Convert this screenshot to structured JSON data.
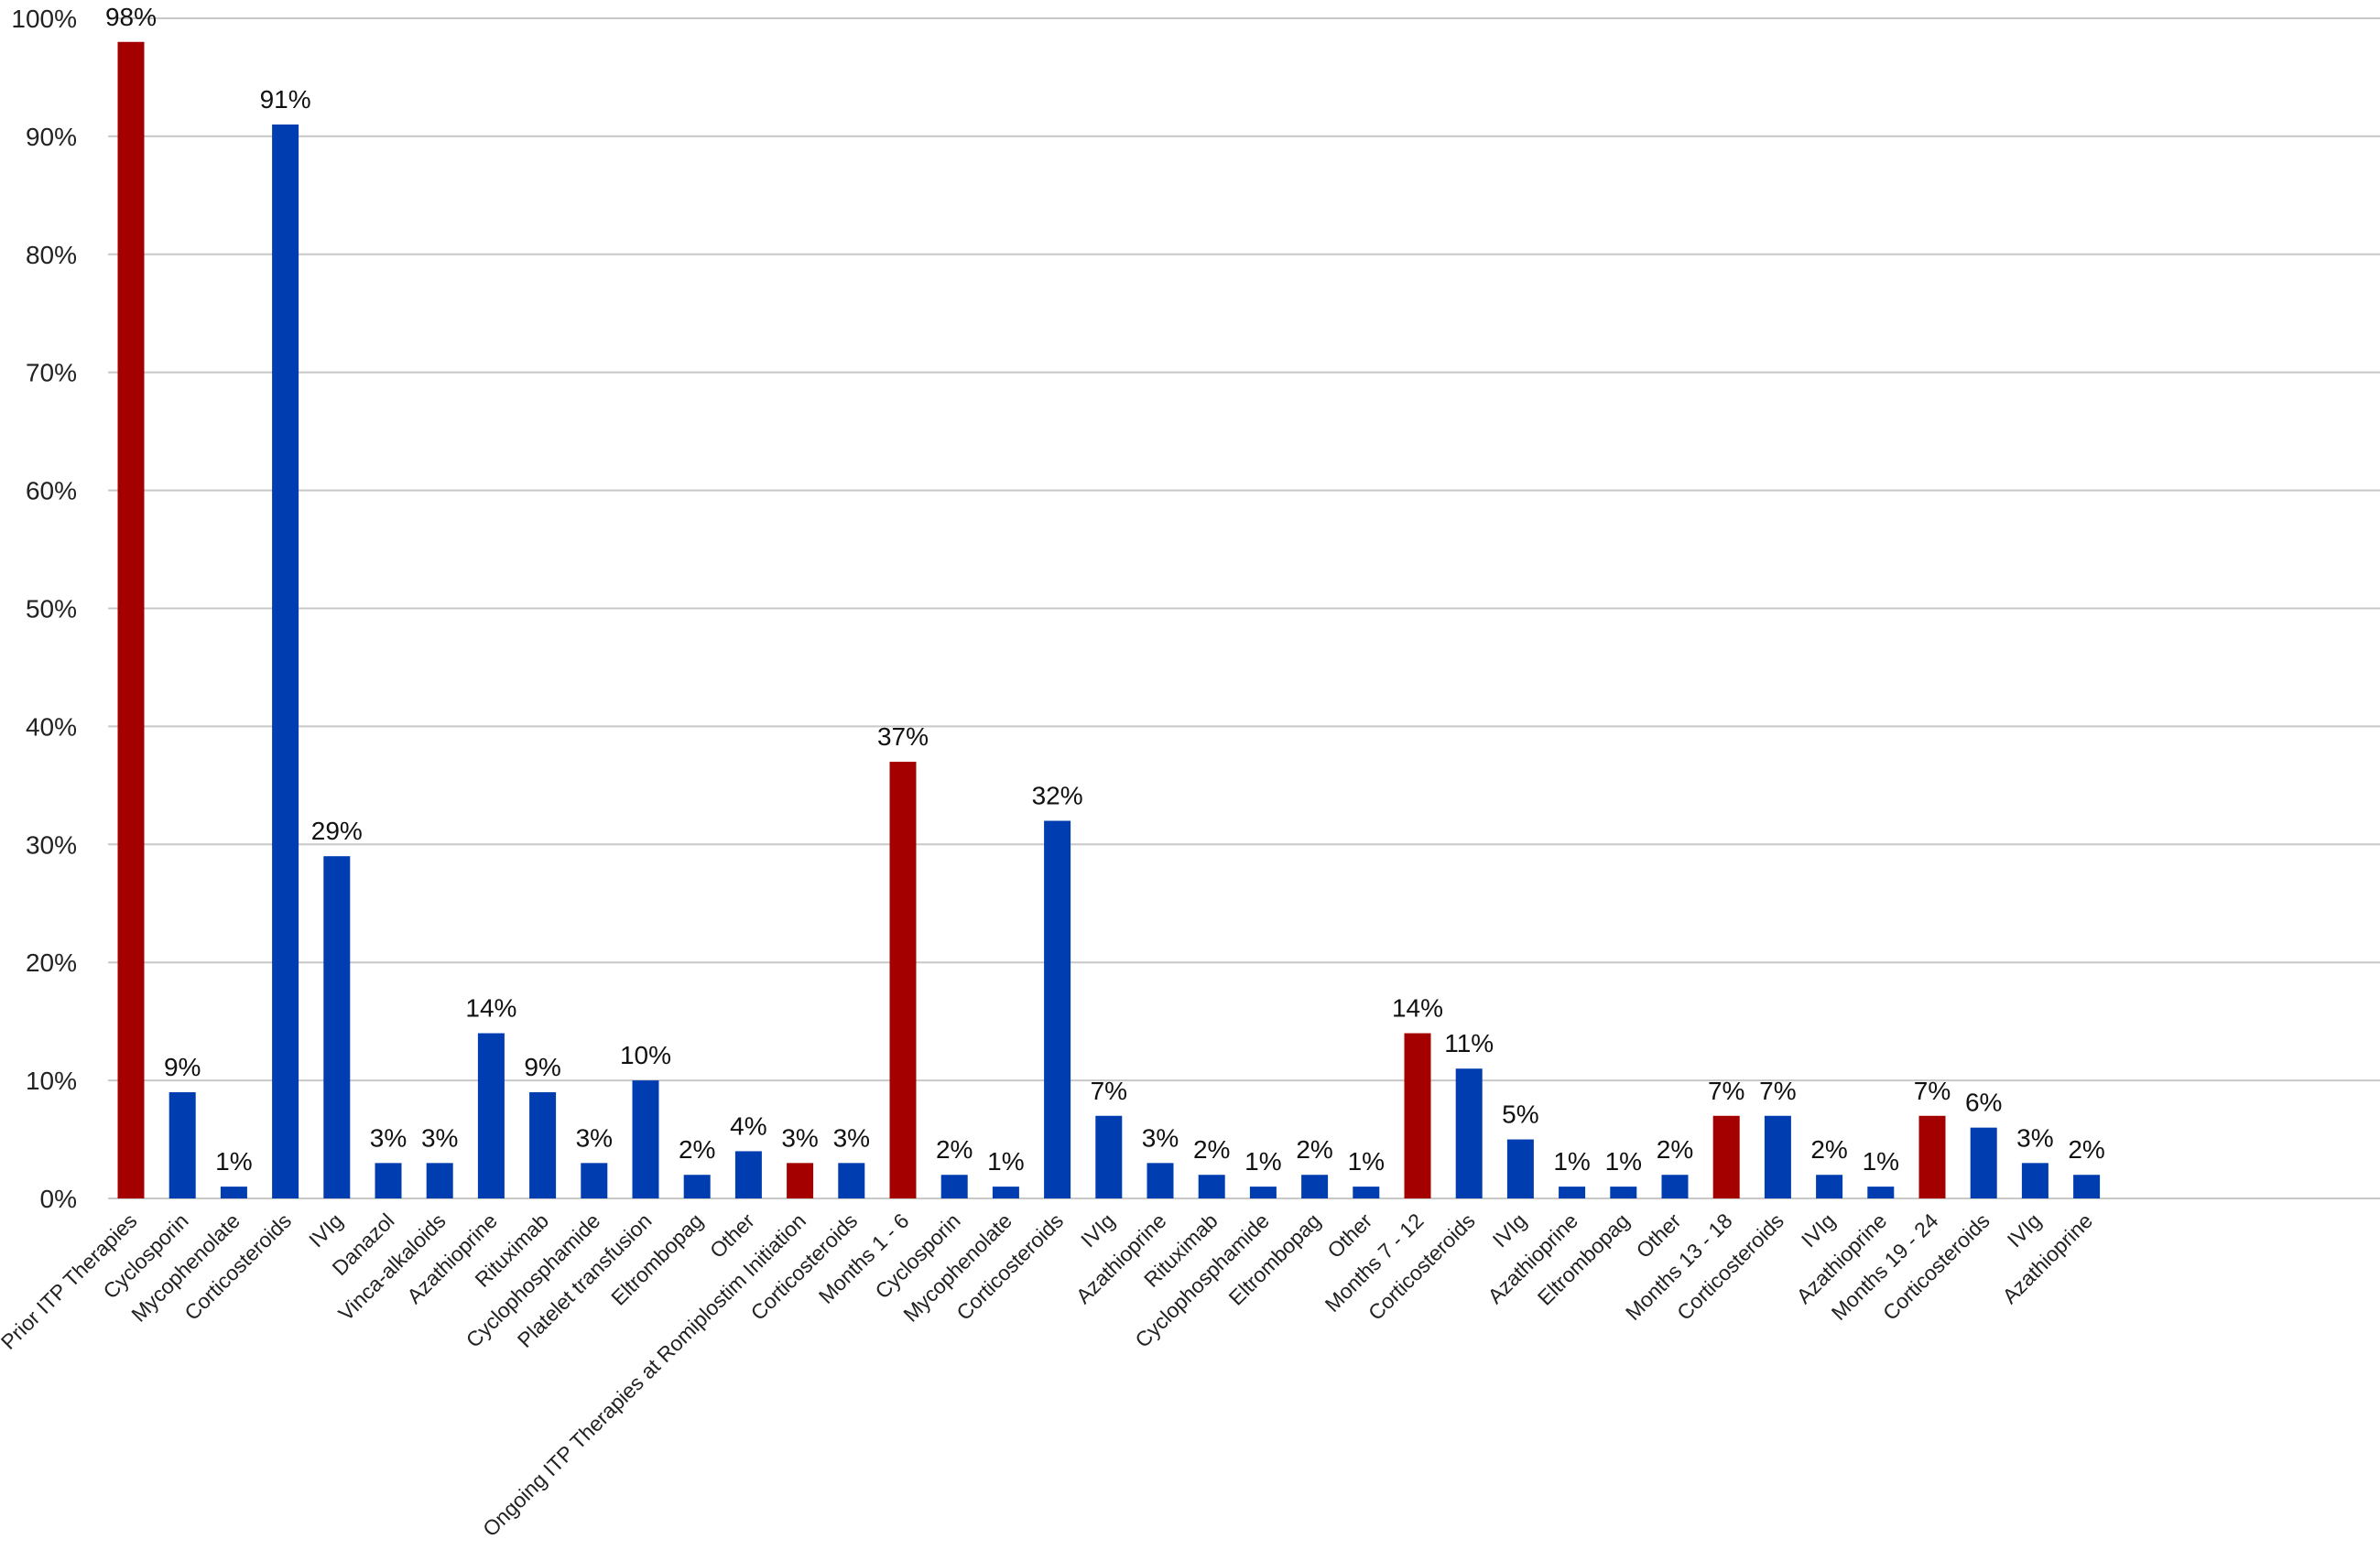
{
  "chart_data": {
    "type": "bar",
    "title": "",
    "xlabel": "",
    "ylabel": "",
    "ylim": [
      0,
      100
    ],
    "y_ticks": [
      "0%",
      "10%",
      "20%",
      "30%",
      "40%",
      "50%",
      "60%",
      "70%",
      "80%",
      "90%",
      "100%"
    ],
    "grid": true,
    "legend": "none",
    "colors": {
      "header": "#A50000",
      "item": "#003DB0",
      "grid": "#C8C8C8"
    },
    "categories": [
      "Prior ITP Therapies",
      "Cyclosporin",
      "Mycophenolate",
      "Corticosteroids",
      "IVIg",
      "Danazol",
      "Vinca-alkaloids",
      "Azathioprine",
      "Rituximab",
      "Cyclophosphamide",
      "Platelet transfusion",
      "Eltrombopag",
      "Other",
      "Ongoing ITP Therapies at Romiplostim Initiation",
      "Corticosteroids",
      "Months 1 - 6",
      "Cyclosporin",
      "Mycophenolate",
      "Corticosteroids",
      "IVIg",
      "Azathioprine",
      "Rituximab",
      "Cyclophosphamide",
      "Eltrombopag",
      "Other",
      "Months 7 - 12",
      "Corticosteroids",
      "IVIg",
      "Azathioprine",
      "Eltrombopag",
      "Other",
      "Months 13 - 18",
      "Corticosteroids",
      "IVIg",
      "Azathioprine",
      "Months 19 - 24",
      "Corticosteroids",
      "IVIg",
      "Azathioprine"
    ],
    "values": [
      98,
      9,
      1,
      91,
      29,
      3,
      3,
      14,
      9,
      3,
      10,
      2,
      4,
      3,
      3,
      37,
      2,
      1,
      32,
      7,
      3,
      2,
      1,
      2,
      1,
      14,
      11,
      5,
      1,
      1,
      2,
      7,
      7,
      2,
      1,
      7,
      6,
      3,
      2
    ],
    "data_labels": [
      "98%",
      "9%",
      "1%",
      "91%",
      "29%",
      "3%",
      "3%",
      "14%",
      "9%",
      "3%",
      "10%",
      "2%",
      "4%",
      "3%",
      "3%",
      "37%",
      "2%",
      "1%",
      "32%",
      "7%",
      "3%",
      "2%",
      "1%",
      "2%",
      "1%",
      "14%",
      "11%",
      "5%",
      "1%",
      "1%",
      "2%",
      "7%",
      "7%",
      "2%",
      "1%",
      "7%",
      "6%",
      "3%",
      "2%"
    ],
    "is_header": [
      true,
      false,
      false,
      false,
      false,
      false,
      false,
      false,
      false,
      false,
      false,
      false,
      false,
      true,
      false,
      true,
      false,
      false,
      false,
      false,
      false,
      false,
      false,
      false,
      false,
      true,
      false,
      false,
      false,
      false,
      false,
      true,
      false,
      false,
      false,
      true,
      false,
      false,
      false
    ]
  }
}
